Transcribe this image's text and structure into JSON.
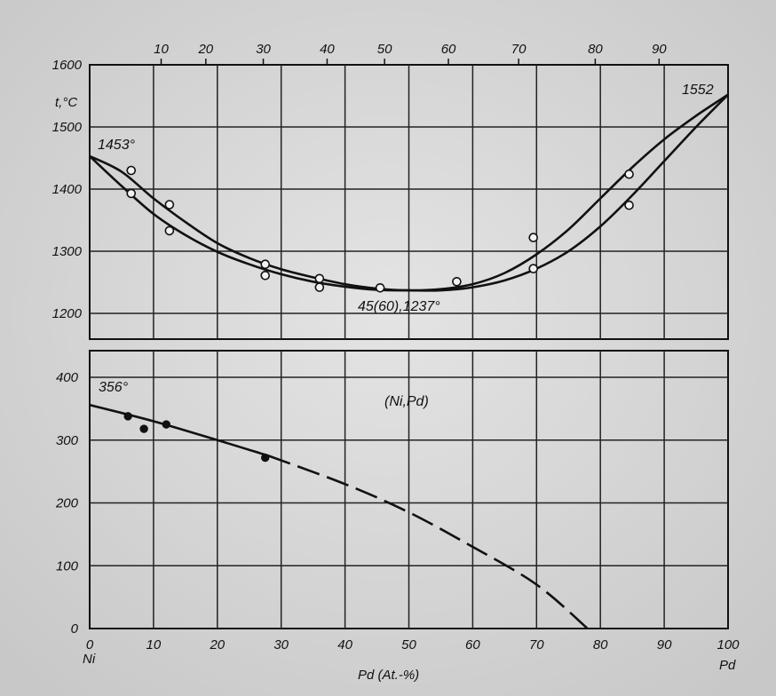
{
  "chart_data": [
    {
      "type": "line",
      "ylabel": "t,°C",
      "x_top_ticks": [
        "10",
        "20",
        "30",
        "40",
        "50",
        "60",
        "70",
        "80",
        "90"
      ],
      "x_bottom_ticks": [
        "0",
        "10",
        "20",
        "30",
        "40",
        "50",
        "60",
        "70",
        "80",
        "90",
        "100"
      ],
      "y_ticks": [
        "1600",
        "1500",
        "1400",
        "1300",
        "1200"
      ],
      "ylim": [
        1190,
        1600
      ],
      "xlim": [
        0,
        100
      ],
      "series": [
        {
          "kind": "liquidus",
          "x": [
            0,
            5,
            10,
            15,
            20,
            25,
            30,
            35,
            40,
            45,
            50,
            55,
            60,
            65,
            70,
            75,
            80,
            85,
            90,
            95,
            100
          ],
          "y": [
            1453,
            1428,
            1385,
            1347,
            1313,
            1289,
            1271,
            1258,
            1247,
            1240,
            1237,
            1239,
            1247,
            1265,
            1295,
            1335,
            1385,
            1435,
            1480,
            1518,
            1552
          ]
        },
        {
          "kind": "solidus",
          "x": [
            0,
            5,
            10,
            15,
            20,
            25,
            30,
            35,
            40,
            45,
            50,
            55,
            60,
            65,
            70,
            75,
            80,
            85,
            90,
            95,
            100
          ],
          "y": [
            1453,
            1405,
            1360,
            1326,
            1299,
            1279,
            1263,
            1251,
            1243,
            1238,
            1237,
            1237,
            1242,
            1253,
            1272,
            1300,
            1340,
            1390,
            1445,
            1500,
            1552
          ]
        }
      ],
      "points": [
        {
          "x": 6.5,
          "y": 1430
        },
        {
          "x": 6.5,
          "y": 1393
        },
        {
          "x": 12.5,
          "y": 1375
        },
        {
          "x": 12.5,
          "y": 1333
        },
        {
          "x": 27.5,
          "y": 1279
        },
        {
          "x": 27.5,
          "y": 1261
        },
        {
          "x": 36,
          "y": 1256
        },
        {
          "x": 36,
          "y": 1242
        },
        {
          "x": 45.5,
          "y": 1241
        },
        {
          "x": 57.5,
          "y": 1251
        },
        {
          "x": 69.5,
          "y": 1322
        },
        {
          "x": 69.5,
          "y": 1272
        },
        {
          "x": 84.5,
          "y": 1424
        },
        {
          "x": 84.5,
          "y": 1374
        }
      ],
      "annotations": [
        "1453°",
        "1552",
        "45(60),1237°"
      ]
    },
    {
      "type": "line",
      "xlabel": "Pd (At.-%)",
      "y_ticks": [
        "400",
        "300",
        "200",
        "100",
        "0"
      ],
      "ylim": [
        0,
        430
      ],
      "xlim": [
        0,
        100
      ],
      "series": [
        {
          "kind": "solid",
          "x": [
            0,
            10,
            20,
            28
          ],
          "y": [
            356,
            330,
            300,
            275
          ]
        },
        {
          "kind": "dashed",
          "x": [
            28,
            40,
            50,
            60,
            70,
            78
          ],
          "y": [
            275,
            230,
            185,
            130,
            70,
            0
          ]
        }
      ],
      "points": [
        {
          "x": 6,
          "y": 338
        },
        {
          "x": 8.5,
          "y": 318
        },
        {
          "x": 12,
          "y": 325
        },
        {
          "x": 27.5,
          "y": 272
        }
      ],
      "annotations": [
        "356°",
        "(Ni,Pd)"
      ],
      "end_labels": [
        "Ni",
        "Pd"
      ]
    }
  ]
}
